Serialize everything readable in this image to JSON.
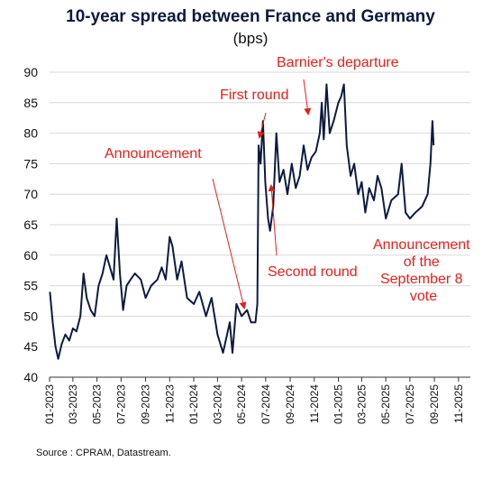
{
  "chart_data": {
    "type": "line",
    "title": "10-year spread between France and Germany",
    "subtitle": "(bps)",
    "source": "Source : CPRAM, Datastream.",
    "y_axis": {
      "min": 40,
      "max": 90,
      "ticks": [
        40,
        45,
        50,
        55,
        60,
        65,
        70,
        75,
        80,
        85,
        90
      ],
      "grid": true
    },
    "x_axis": {
      "start": "2023-01-01",
      "end": "2025-12-01",
      "ticks": [
        {
          "date": "2023-01-01",
          "label": "01-2023"
        },
        {
          "date": "2023-03-01",
          "label": "03-2023"
        },
        {
          "date": "2023-05-01",
          "label": "05-2023"
        },
        {
          "date": "2023-07-01",
          "label": "07-2023"
        },
        {
          "date": "2023-09-01",
          "label": "09-2023"
        },
        {
          "date": "2023-11-01",
          "label": "11-2023"
        },
        {
          "date": "2024-01-01",
          "label": "01-2024"
        },
        {
          "date": "2024-03-01",
          "label": "03-2024"
        },
        {
          "date": "2024-05-01",
          "label": "05-2024"
        },
        {
          "date": "2024-07-01",
          "label": "07-2024"
        },
        {
          "date": "2024-09-01",
          "label": "09-2024"
        },
        {
          "date": "2024-11-01",
          "label": "11-2024"
        },
        {
          "date": "2025-01-01",
          "label": "01-2025"
        },
        {
          "date": "2025-03-01",
          "label": "03-2025"
        },
        {
          "date": "2025-05-01",
          "label": "05-2025"
        },
        {
          "date": "2025-07-01",
          "label": "07-2025"
        },
        {
          "date": "2025-09-01",
          "label": "09-2025"
        },
        {
          "date": "2025-11-01",
          "label": "11-2025"
        }
      ]
    },
    "series": [
      {
        "color": "#0d1b3e",
        "points": [
          [
            "2023-01-02",
            54
          ],
          [
            "2023-01-09",
            49
          ],
          [
            "2023-01-16",
            45
          ],
          [
            "2023-01-23",
            43
          ],
          [
            "2023-02-01",
            45.5
          ],
          [
            "2023-02-10",
            47
          ],
          [
            "2023-02-20",
            46
          ],
          [
            "2023-03-01",
            48
          ],
          [
            "2023-03-10",
            47.5
          ],
          [
            "2023-03-20",
            50
          ],
          [
            "2023-03-28",
            57
          ],
          [
            "2023-04-05",
            53
          ],
          [
            "2023-04-15",
            51
          ],
          [
            "2023-04-25",
            50
          ],
          [
            "2023-05-05",
            55
          ],
          [
            "2023-05-15",
            57
          ],
          [
            "2023-05-25",
            60
          ],
          [
            "2023-06-03",
            58
          ],
          [
            "2023-06-12",
            56
          ],
          [
            "2023-06-20",
            66
          ],
          [
            "2023-06-28",
            57
          ],
          [
            "2023-07-06",
            51
          ],
          [
            "2023-07-15",
            55
          ],
          [
            "2023-07-25",
            56
          ],
          [
            "2023-08-05",
            57
          ],
          [
            "2023-08-20",
            56
          ],
          [
            "2023-09-01",
            53
          ],
          [
            "2023-09-15",
            55
          ],
          [
            "2023-10-01",
            56
          ],
          [
            "2023-10-12",
            58
          ],
          [
            "2023-10-22",
            56
          ],
          [
            "2023-11-01",
            63
          ],
          [
            "2023-11-08",
            61.5
          ],
          [
            "2023-11-20",
            56
          ],
          [
            "2023-12-01",
            59
          ],
          [
            "2023-12-15",
            53
          ],
          [
            "2024-01-01",
            52
          ],
          [
            "2024-01-15",
            54
          ],
          [
            "2024-02-01",
            50
          ],
          [
            "2024-02-15",
            53
          ],
          [
            "2024-03-01",
            47
          ],
          [
            "2024-03-15",
            44
          ],
          [
            "2024-04-01",
            49
          ],
          [
            "2024-04-08",
            44
          ],
          [
            "2024-04-18",
            52
          ],
          [
            "2024-05-01",
            50
          ],
          [
            "2024-05-15",
            51
          ],
          [
            "2024-05-25",
            49
          ],
          [
            "2024-06-05",
            49
          ],
          [
            "2024-06-10",
            52
          ],
          [
            "2024-06-13",
            78
          ],
          [
            "2024-06-18",
            75
          ],
          [
            "2024-06-24",
            82
          ],
          [
            "2024-06-30",
            72
          ],
          [
            "2024-07-07",
            66
          ],
          [
            "2024-07-12",
            64
          ],
          [
            "2024-07-20",
            68
          ],
          [
            "2024-07-28",
            80
          ],
          [
            "2024-08-05",
            72
          ],
          [
            "2024-08-15",
            74
          ],
          [
            "2024-08-25",
            70
          ],
          [
            "2024-09-05",
            75
          ],
          [
            "2024-09-15",
            71
          ],
          [
            "2024-09-25",
            73
          ],
          [
            "2024-10-05",
            78
          ],
          [
            "2024-10-15",
            74
          ],
          [
            "2024-10-25",
            76
          ],
          [
            "2024-11-05",
            77
          ],
          [
            "2024-11-15",
            80
          ],
          [
            "2024-11-20",
            85
          ],
          [
            "2024-11-25",
            79
          ],
          [
            "2024-12-02",
            88
          ],
          [
            "2024-12-10",
            80
          ],
          [
            "2024-12-20",
            82
          ],
          [
            "2025-01-01",
            85
          ],
          [
            "2025-01-08",
            86
          ],
          [
            "2025-01-15",
            88
          ],
          [
            "2025-01-22",
            78
          ],
          [
            "2025-02-01",
            73
          ],
          [
            "2025-02-10",
            75
          ],
          [
            "2025-02-20",
            70
          ],
          [
            "2025-03-01",
            72
          ],
          [
            "2025-03-10",
            67
          ],
          [
            "2025-03-20",
            71
          ],
          [
            "2025-04-01",
            69
          ],
          [
            "2025-04-10",
            73
          ],
          [
            "2025-04-20",
            71
          ],
          [
            "2025-05-01",
            66
          ],
          [
            "2025-05-15",
            69
          ],
          [
            "2025-06-01",
            70
          ],
          [
            "2025-06-10",
            75
          ],
          [
            "2025-06-20",
            67
          ],
          [
            "2025-07-01",
            66
          ],
          [
            "2025-07-15",
            67
          ],
          [
            "2025-08-01",
            68
          ],
          [
            "2025-08-15",
            70
          ],
          [
            "2025-08-22",
            75
          ],
          [
            "2025-08-27",
            82
          ],
          [
            "2025-08-30",
            78
          ]
        ]
      }
    ],
    "annotations": [
      {
        "text": "Announcement",
        "color": "#e0221c"
      },
      {
        "text": "First round",
        "color": "#e0221c"
      },
      {
        "text": "Second round",
        "color": "#e0221c"
      },
      {
        "text": "Barnier's departure",
        "color": "#e0221c"
      },
      {
        "lines": [
          "Announcement",
          "of the",
          "September 8",
          "vote"
        ],
        "color": "#e0221c"
      }
    ]
  }
}
